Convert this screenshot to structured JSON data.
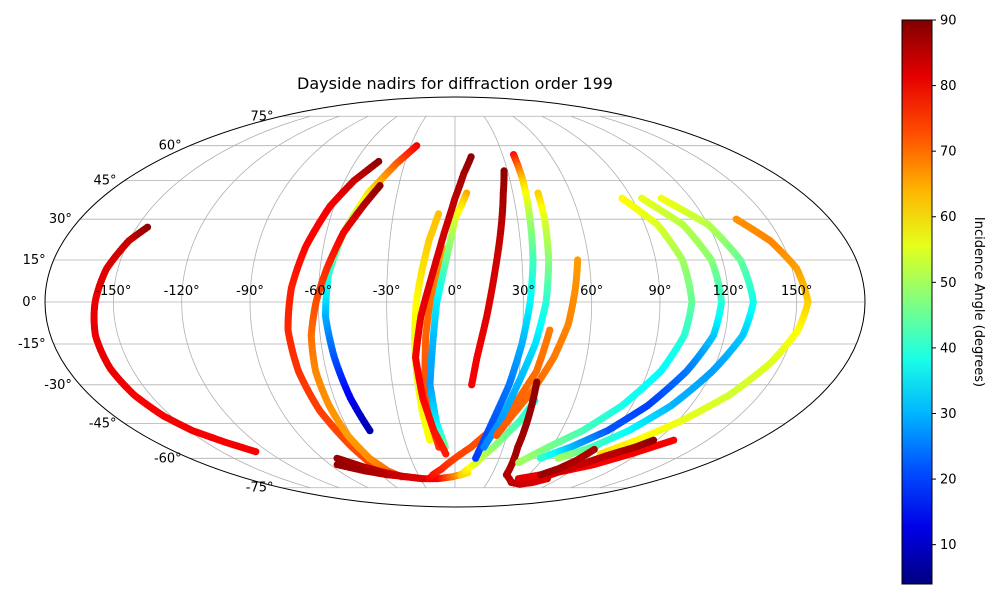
{
  "chart_data": {
    "type": "scatter",
    "projection": "mollweide",
    "title": "Dayside nadirs for diffraction order 199",
    "xlabel": "",
    "ylabel": "",
    "grid": true,
    "lon_ticks": [
      -150,
      -120,
      -90,
      -60,
      -30,
      0,
      30,
      60,
      90,
      120,
      150
    ],
    "lon_tick_labels": [
      "-150°",
      "-120°",
      "-90°",
      "-60°",
      "-30°",
      "0°",
      "30°",
      "60°",
      "90°",
      "120°",
      "150°"
    ],
    "lat_ticks": [
      75,
      60,
      45,
      30,
      15,
      0,
      -15,
      -30,
      -45,
      -60,
      -75
    ],
    "lat_tick_labels": [
      "75°",
      "60°",
      "45°",
      "30°",
      "15°",
      "0°",
      "-15°",
      "-30°",
      "-45°",
      "-60°",
      "-75°"
    ],
    "colorbar": {
      "label": "Incidence Angle (degrees)",
      "range": [
        4,
        90
      ],
      "ticks": [
        10,
        20,
        30,
        40,
        50,
        60,
        70,
        80,
        90
      ],
      "tick_labels": [
        "10",
        "20",
        "30",
        "40",
        "50",
        "60",
        "70",
        "80",
        "90"
      ],
      "colormap": "jet"
    },
    "tracks": [
      {
        "lon": [
          -145,
          -150,
          -155,
          -158,
          -160,
          -160,
          -158,
          -154,
          -148,
          -138,
          -128
        ],
        "lat": [
          27,
          22,
          12,
          0,
          -12,
          -24,
          -34,
          -42,
          -48,
          -53,
          -57
        ],
        "inc": [
          89,
          84,
          82,
          81,
          81,
          81,
          80,
          80,
          80,
          80,
          80
        ]
      },
      {
        "lon": [
          -46,
          -55,
          -62,
          -68,
          -72,
          -74,
          -73,
          -70,
          -64,
          -58
        ],
        "lat": [
          53,
          45,
          35,
          20,
          5,
          -10,
          -25,
          -40,
          -55,
          -66
        ],
        "inc": [
          89,
          84,
          80,
          79,
          77,
          76,
          75,
          74,
          73,
          74
        ]
      },
      {
        "lon": [
          -26,
          -35,
          -45,
          -52,
          -56,
          -57,
          -55,
          -52,
          -48
        ],
        "lat": [
          60,
          52,
          40,
          25,
          10,
          -5,
          -20,
          -35,
          -48
        ],
        "inc": [
          80,
          72,
          60,
          48,
          40,
          30,
          22,
          14,
          8
        ]
      },
      {
        "lon": [
          -40,
          -45,
          -52,
          -57,
          -61,
          -64,
          -65,
          -64,
          -62,
          -58,
          -52,
          -45
        ],
        "lat": [
          43,
          36,
          25,
          12,
          0,
          -12,
          -25,
          -38,
          -50,
          -60,
          -66,
          -69
        ],
        "inc": [
          89,
          86,
          80,
          76,
          73,
          70,
          68,
          67,
          66,
          67,
          70,
          74
        ]
      },
      {
        "lon": [
          -80,
          -68,
          -55,
          -42,
          -28,
          -15,
          -2,
          10
        ],
        "lat": [
          -60,
          -64,
          -67,
          -69,
          -70,
          -70,
          -69,
          -67
        ],
        "inc": [
          88,
          86,
          84,
          82,
          81,
          80,
          70,
          60
        ]
      },
      {
        "lon": [
          -85,
          -70,
          -55,
          -40,
          -28
        ],
        "lat": [
          -63,
          -66,
          -68,
          -69,
          -70
        ],
        "inc": [
          88,
          87,
          85,
          83,
          82
        ]
      },
      {
        "lon": [
          -8,
          -12,
          -15,
          -17,
          -18,
          -18,
          -17,
          -15
        ],
        "lat": [
          32,
          22,
          10,
          0,
          -12,
          -25,
          -40,
          -52
        ],
        "inc": [
          63,
          62,
          60,
          58,
          57,
          56,
          57,
          58
        ]
      },
      {
        "lon": [
          -4,
          -8,
          -11,
          -13,
          -14,
          -14,
          -12,
          -10
        ],
        "lat": [
          19,
          10,
          0,
          -12,
          -25,
          -38,
          -48,
          -55
        ],
        "inc": [
          65,
          68,
          70,
          71,
          72,
          73,
          74,
          75
        ]
      },
      {
        "lon": [
          6,
          0,
          -4,
          -8,
          -10,
          -12,
          -10,
          -6
        ],
        "lat": [
          40,
          30,
          15,
          0,
          -15,
          -30,
          -45,
          -55
        ],
        "inc": [
          65,
          55,
          45,
          35,
          30,
          28,
          35,
          45
        ]
      },
      {
        "lon": [
          10,
          5,
          0,
          -5,
          -10,
          -15,
          -18,
          -16,
          -12,
          -6
        ],
        "lat": [
          55,
          48,
          38,
          25,
          10,
          -5,
          -20,
          -35,
          -48,
          -58
        ],
        "inc": [
          89,
          87,
          85,
          83,
          82,
          81,
          80,
          79,
          78,
          77
        ]
      },
      {
        "lon": [
          -22,
          -18,
          -10,
          0,
          10,
          20,
          30,
          38,
          42
        ],
        "lat": [
          -70,
          -68,
          -65,
          -60,
          -55,
          -48,
          -38,
          -25,
          -10
        ],
        "inc": [
          80,
          78,
          76,
          74,
          73,
          72,
          71,
          70,
          69
        ]
      },
      {
        "lon": [
          5,
          15,
          25,
          35,
          40
        ],
        "lat": [
          -68,
          -62,
          -54,
          -44,
          -36
        ],
        "inc": [
          62,
          55,
          48,
          42,
          38
        ]
      },
      {
        "lon": [
          28,
          25,
          22,
          18,
          14,
          10,
          8
        ],
        "lat": [
          49,
          40,
          28,
          12,
          -5,
          -20,
          -30
        ],
        "inc": [
          89,
          87,
          85,
          83,
          82,
          80,
          80
        ]
      },
      {
        "lon": [
          37,
          37,
          36,
          35,
          33,
          30,
          26,
          20,
          14
        ],
        "lat": [
          56,
          45,
          30,
          15,
          0,
          -15,
          -30,
          -45,
          -60
        ],
        "inc": [
          78,
          62,
          50,
          42,
          36,
          30,
          25,
          22,
          20
        ]
      },
      {
        "lon": [
          43,
          43,
          42,
          40,
          36,
          30,
          24,
          18
        ],
        "lat": [
          40,
          30,
          15,
          0,
          -15,
          -30,
          -45,
          -55
        ],
        "inc": [
          62,
          55,
          48,
          40,
          34,
          30,
          28,
          26
        ]
      },
      {
        "lon": [
          55,
          53,
          50,
          45,
          38,
          30,
          24
        ],
        "lat": [
          15,
          5,
          -8,
          -20,
          -32,
          -42,
          -50
        ],
        "inc": [
          66,
          67,
          68,
          69,
          70,
          71,
          72
        ]
      },
      {
        "lon": [
          39,
          39,
          39,
          42,
          52,
          62,
          72,
          80
        ],
        "lat": [
          -29,
          -42,
          -55,
          -68,
          -72,
          -73,
          -72,
          -70
        ],
        "inc": [
          89,
          88,
          87,
          86,
          85,
          84,
          83,
          82
        ]
      },
      {
        "lon": [
          85,
          96,
          102,
          104,
          102,
          96,
          85,
          72,
          58,
          45
        ],
        "lat": [
          38,
          28,
          15,
          0,
          -12,
          -25,
          -38,
          -48,
          -55,
          -62
        ],
        "inc": [
          58,
          55,
          50,
          45,
          40,
          36,
          38,
          42,
          46,
          50
        ]
      },
      {
        "lon": [
          95,
          108,
          115,
          117,
          115,
          108,
          98,
          86,
          72,
          58
        ],
        "lat": [
          38,
          28,
          15,
          0,
          -12,
          -25,
          -38,
          -48,
          -55,
          -60
        ],
        "inc": [
          56,
          52,
          48,
          40,
          32,
          25,
          20,
          22,
          30,
          40
        ]
      },
      {
        "lon": [
          105,
          120,
          128,
          131,
          128,
          120,
          110,
          98,
          85,
          70
        ],
        "lat": [
          38,
          28,
          15,
          0,
          -12,
          -25,
          -38,
          -48,
          -55,
          -60
        ],
        "inc": [
          57,
          52,
          45,
          38,
          32,
          28,
          30,
          36,
          42,
          50
        ]
      },
      {
        "lon": [
          135,
          145,
          152,
          155,
          152,
          145,
          135,
          122,
          108,
          95
        ],
        "lat": [
          30,
          22,
          12,
          0,
          -10,
          -22,
          -34,
          -44,
          -52,
          -58
        ],
        "inc": [
          67,
          68,
          66,
          62,
          58,
          55,
          54,
          56,
          58,
          60
        ]
      },
      {
        "lon": [
          55,
          70,
          85,
          100,
          115,
          130
        ],
        "lat": [
          -70,
          -68,
          -66,
          -63,
          -58,
          -52
        ],
        "inc": [
          82,
          81,
          80,
          80,
          80,
          80
        ]
      },
      {
        "lon": [
          118,
          112,
          100,
          88,
          78
        ],
        "lat": [
          -52,
          -55,
          -59,
          -64,
          -68
        ],
        "inc": [
          89,
          87,
          85,
          84,
          83
        ]
      },
      {
        "lon": [
          70,
          78,
          84,
          88
        ],
        "lat": [
          -68,
          -65,
          -61,
          -56
        ],
        "inc": [
          88,
          87,
          86,
          86
        ]
      }
    ]
  }
}
